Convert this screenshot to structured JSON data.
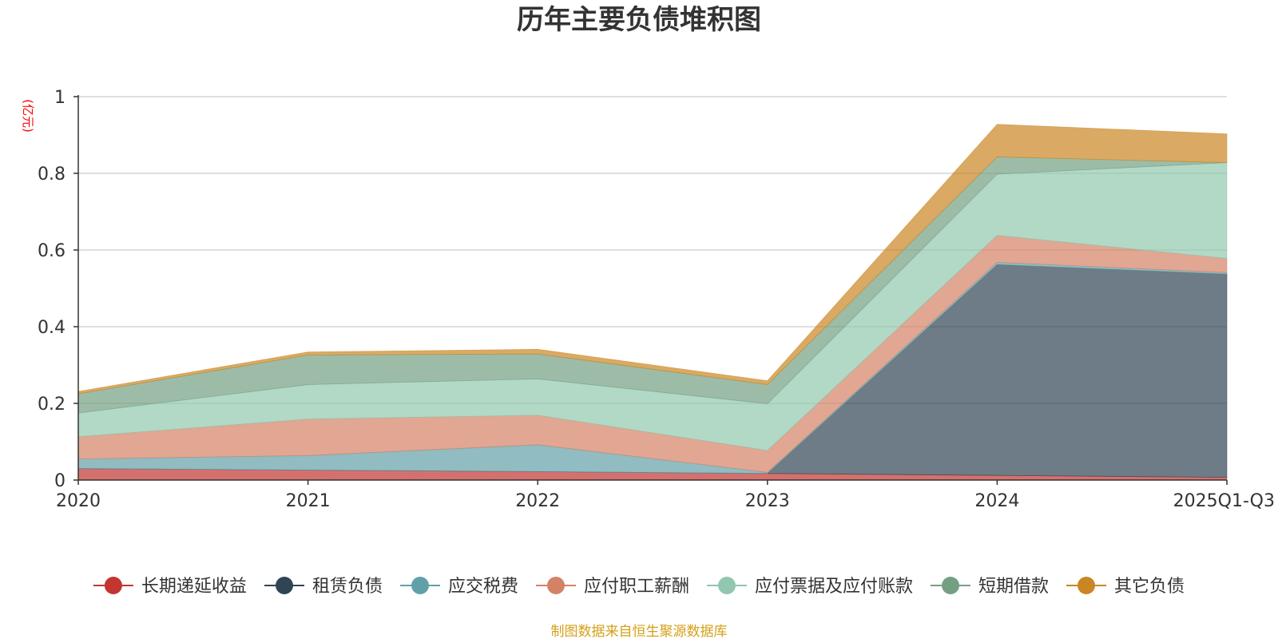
{
  "chart_data": {
    "type": "area",
    "stacked": true,
    "title": "历年主要负债堆积图",
    "unit_label": "(亿元)",
    "categories": [
      "2020",
      "2021",
      "2022",
      "2023",
      "2024",
      "2025Q1-Q3"
    ],
    "y_ticks": [
      "0",
      "0.2",
      "0.4",
      "0.6",
      "0.8",
      "1"
    ],
    "ylim": [
      0,
      1
    ],
    "grid": true,
    "legend_position": "bottom",
    "series": [
      {
        "name": "长期递延收益",
        "color": "#c23531",
        "values": [
          0.03,
          0.026,
          0.022,
          0.017,
          0.012,
          0.007
        ]
      },
      {
        "name": "租赁负债",
        "color": "#2f4554",
        "values": [
          0.0,
          0.0,
          0.0,
          0.0,
          0.55,
          0.53
        ]
      },
      {
        "name": "应交税费",
        "color": "#61a0a8",
        "values": [
          0.025,
          0.038,
          0.07,
          0.003,
          0.006,
          0.004
        ]
      },
      {
        "name": "应付职工薪酬",
        "color": "#d48265",
        "values": [
          0.058,
          0.095,
          0.077,
          0.057,
          0.07,
          0.037
        ]
      },
      {
        "name": "应付票据及应付账款",
        "color": "#91c7ae",
        "values": [
          0.062,
          0.09,
          0.095,
          0.122,
          0.16,
          0.25
        ]
      },
      {
        "name": "短期借款",
        "color": "#749f83",
        "values": [
          0.05,
          0.077,
          0.065,
          0.05,
          0.045,
          0.0
        ]
      },
      {
        "name": "其它负债",
        "color": "#ca8622",
        "values": [
          0.006,
          0.008,
          0.012,
          0.01,
          0.085,
          0.075
        ]
      }
    ]
  },
  "source_text": "制图数据来自恒生聚源数据库",
  "colors": {
    "source_text": "#d4a017",
    "grid": "#cccccc",
    "axis": "#333333"
  }
}
